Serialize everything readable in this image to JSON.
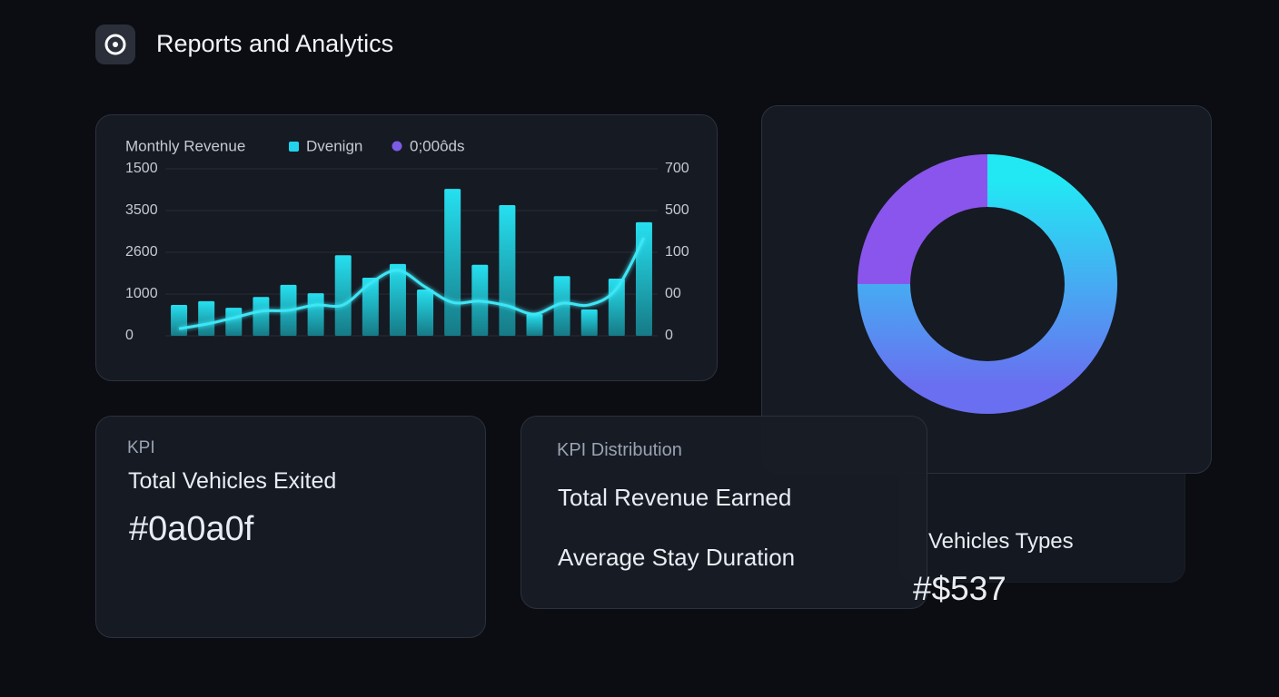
{
  "header": {
    "title": "Reports and Analytics"
  },
  "revenue_chart": {
    "type": "bar",
    "title": "Monthly Revenue",
    "categories": [
      null,
      null,
      null,
      null,
      null,
      null,
      null,
      null,
      null,
      null,
      null,
      null,
      null,
      null,
      null,
      null,
      null,
      null
    ],
    "series": [
      {
        "name": "Dvenign",
        "color": "#22d3ee",
        "values": [
          740,
          830,
          670,
          930,
          1220,
          1020,
          1930,
          1390,
          1720,
          1110,
          3520,
          1700,
          3130,
          520,
          1430,
          630,
          1370,
          2720
        ]
      },
      {
        "name": "0;00ôds",
        "color": "#7c5ce6",
        "type": "line",
        "values": [
          170,
          280,
          430,
          590,
          610,
          740,
          740,
          1260,
          1570,
          1170,
          800,
          830,
          720,
          520,
          780,
          740,
          1130,
          2350
        ]
      }
    ],
    "ylim": [
      0,
      4000
    ],
    "left_axis_labels": [
      "1500",
      "3500",
      "2600",
      "1000",
      "0"
    ],
    "right_axis_labels": [
      "700",
      "500",
      "100",
      "00",
      "0"
    ],
    "grid": true
  },
  "donut": {
    "type": "donut",
    "values": [
      75,
      25
    ],
    "colors": [
      "#22e3f2",
      "#8a55ec"
    ]
  },
  "kpi_card": {
    "label": "KPI",
    "title": "Total Vehicles Exited",
    "value": "#0a0a0f"
  },
  "distribution_card": {
    "label": "KPI Distribution",
    "items": [
      "Total Revenue Earned",
      "Average Stay Duration"
    ]
  },
  "types_card": {
    "title": "Vehicles Types",
    "value": "#$537"
  }
}
